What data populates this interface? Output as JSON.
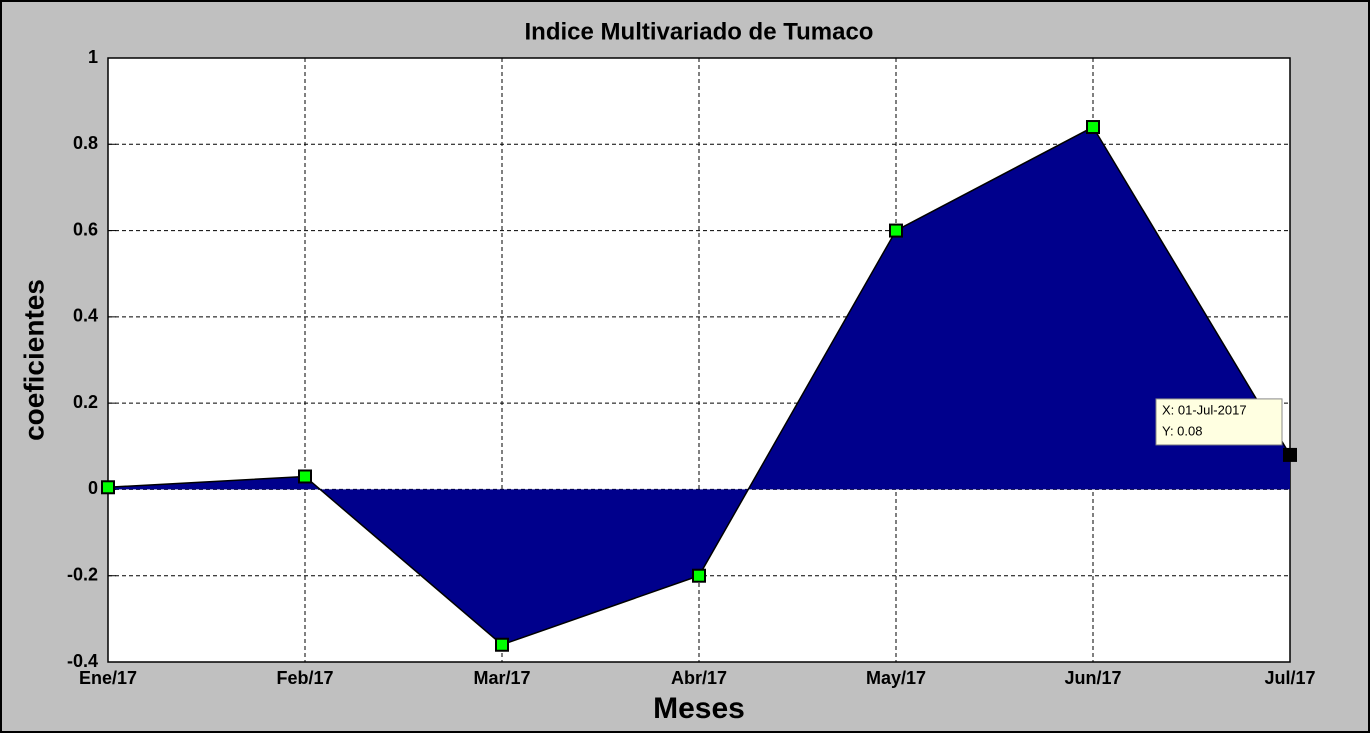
{
  "chart_data": {
    "type": "area",
    "title": "Indice Multivariado de Tumaco",
    "x_label": "Meses",
    "y_label": "coeficientes",
    "categories": [
      "Ene/17",
      "Feb/17",
      "Mar/17",
      "Abr/17",
      "May/17",
      "Jun/17",
      "Jul/17"
    ],
    "series": [
      {
        "color": "#00008c",
        "marker_color": "#00ff00",
        "values": [
          0.005,
          0.03,
          -0.36,
          -0.2,
          0.6,
          0.84,
          0.08
        ]
      }
    ],
    "ylim": [
      -0.4,
      1
    ],
    "yticks": [
      -0.4,
      -0.2,
      0,
      0.2,
      0.4,
      0.6,
      0.8,
      1
    ],
    "grid": true,
    "datatip": {
      "index": 6,
      "lines": [
        "X: 01-Jul-2017",
        "Y: 0.08"
      ]
    }
  }
}
